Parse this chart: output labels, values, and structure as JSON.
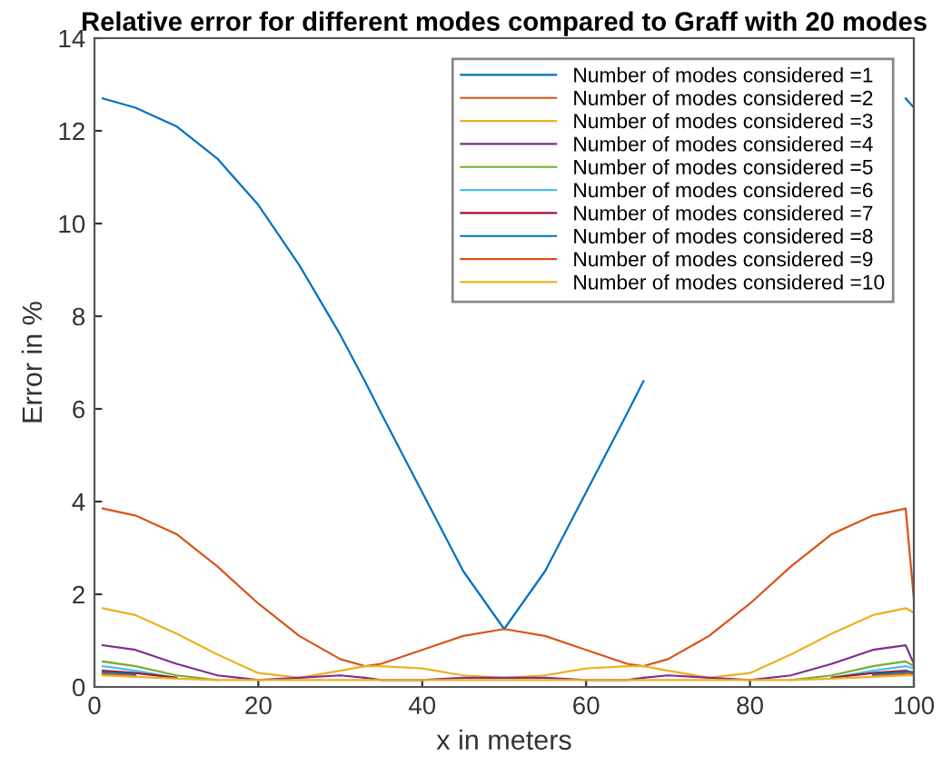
{
  "chart_data": {
    "type": "line",
    "title": "Relative error for different modes compared to Graff with 20 modes",
    "xlabel": "x in meters",
    "ylabel": "Error in %",
    "x": [
      1,
      5,
      10,
      15,
      20,
      25,
      30,
      33,
      35,
      40,
      45,
      50,
      55,
      60,
      65,
      67,
      70,
      75,
      80,
      85,
      90,
      95,
      99,
      100
    ],
    "xlim": [
      0,
      100
    ],
    "xticks": [
      0,
      20,
      40,
      60,
      80,
      100
    ],
    "ylim": [
      0,
      14
    ],
    "yticks": [
      0,
      2,
      4,
      6,
      8,
      10,
      12,
      14
    ],
    "grid": false,
    "legend": "top right",
    "marker": "none",
    "line_style": "solid",
    "series": [
      {
        "name": "Number of modes considered =1",
        "color": "#0072bd",
        "values": [
          12.7,
          12.5,
          12.1,
          11.4,
          10.4,
          9.1,
          7.6,
          6.6,
          5.9,
          4.2,
          2.5,
          1.25,
          2.5,
          4.2,
          5.9,
          6.6,
          null,
          null,
          null,
          null,
          null,
          null,
          12.7,
          12.5
        ]
      },
      {
        "name": "Number of modes considered =2",
        "color": "#d95319",
        "values": [
          3.85,
          3.7,
          3.3,
          2.6,
          1.8,
          1.1,
          0.6,
          0.45,
          0.5,
          0.8,
          1.1,
          1.25,
          1.1,
          0.8,
          0.5,
          0.45,
          0.6,
          1.1,
          1.8,
          2.6,
          3.3,
          3.7,
          3.85,
          1.9
        ]
      },
      {
        "name": "Number of modes considered =3",
        "color": "#edb120",
        "values": [
          1.7,
          1.55,
          1.15,
          0.7,
          0.3,
          0.2,
          0.35,
          0.45,
          0.45,
          0.4,
          0.25,
          0.2,
          0.25,
          0.4,
          0.45,
          0.45,
          0.35,
          0.2,
          0.3,
          0.7,
          1.15,
          1.55,
          1.7,
          1.6
        ]
      },
      {
        "name": "Number of modes considered =4",
        "color": "#7e2f8e",
        "values": [
          0.9,
          0.8,
          0.5,
          0.25,
          0.15,
          0.2,
          0.25,
          0.2,
          0.15,
          0.15,
          0.2,
          0.2,
          0.2,
          0.15,
          0.15,
          0.2,
          0.25,
          0.2,
          0.15,
          0.25,
          0.5,
          0.8,
          0.9,
          0.5
        ]
      },
      {
        "name": "Number of modes considered =5",
        "color": "#77ac30",
        "values": [
          0.55,
          0.45,
          0.25,
          0.15,
          null,
          null,
          null,
          null,
          null,
          null,
          null,
          null,
          null,
          null,
          null,
          null,
          null,
          null,
          null,
          0.15,
          0.25,
          0.45,
          0.55,
          0.45
        ]
      },
      {
        "name": "Number of modes considered =6",
        "color": "#4dbeee",
        "values": [
          0.45,
          0.35,
          0.2,
          null,
          null,
          null,
          null,
          null,
          null,
          null,
          null,
          null,
          null,
          null,
          null,
          null,
          null,
          null,
          null,
          null,
          0.2,
          0.35,
          0.45,
          0.4
        ]
      },
      {
        "name": "Number of modes considered =7",
        "color": "#a2142f",
        "values": [
          0.35,
          0.3,
          0.2,
          null,
          null,
          null,
          null,
          null,
          null,
          null,
          null,
          null,
          null,
          null,
          null,
          null,
          null,
          null,
          null,
          null,
          0.2,
          0.3,
          0.35,
          0.3
        ]
      },
      {
        "name": "Number of modes considered =8",
        "color": "#0072bd",
        "values": [
          0.32,
          0.27,
          null,
          null,
          null,
          null,
          null,
          null,
          null,
          null,
          null,
          null,
          null,
          null,
          null,
          null,
          null,
          null,
          null,
          null,
          null,
          0.27,
          0.32,
          0.32
        ]
      },
      {
        "name": "Number of modes considered =9",
        "color": "#d95319",
        "values": [
          0.28,
          0.24,
          null,
          null,
          null,
          null,
          null,
          null,
          null,
          null,
          null,
          null,
          null,
          null,
          null,
          null,
          null,
          null,
          null,
          null,
          null,
          0.24,
          0.28,
          0.28
        ]
      },
      {
        "name": "Number of modes considered =10",
        "color": "#edb120",
        "values": [
          0.25,
          0.22,
          0.18,
          0.15,
          0.15,
          0.15,
          0.15,
          0.15,
          0.15,
          0.15,
          0.15,
          0.15,
          0.15,
          0.15,
          0.15,
          0.15,
          0.15,
          0.15,
          0.15,
          0.15,
          0.18,
          0.22,
          0.25,
          0.25
        ]
      }
    ]
  }
}
